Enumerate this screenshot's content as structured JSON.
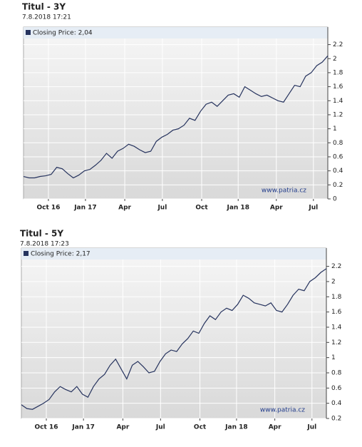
{
  "chart_data": [
    {
      "type": "line",
      "title": "Titul - 3Y",
      "subtitle": "7.8.2018 17:21",
      "annotation": "www.patria.cz",
      "series": [
        {
          "name": "Closing Price: 2,04",
          "color": "#26335e",
          "values": [
            0.32,
            0.3,
            0.3,
            0.32,
            0.33,
            0.35,
            0.45,
            0.43,
            0.36,
            0.3,
            0.34,
            0.4,
            0.42,
            0.48,
            0.55,
            0.65,
            0.58,
            0.68,
            0.72,
            0.78,
            0.75,
            0.7,
            0.66,
            0.68,
            0.82,
            0.88,
            0.92,
            0.98,
            1.0,
            1.05,
            1.15,
            1.12,
            1.25,
            1.35,
            1.38,
            1.32,
            1.4,
            1.48,
            1.5,
            1.45,
            1.6,
            1.55,
            1.5,
            1.46,
            1.48,
            1.44,
            1.4,
            1.38,
            1.5,
            1.62,
            1.6,
            1.75,
            1.8,
            1.9,
            1.95,
            2.04
          ]
        }
      ],
      "xlim": [
        0,
        55
      ],
      "xticks": [
        {
          "value": 4.5,
          "label": "Oct 16"
        },
        {
          "value": 11.2,
          "label": "Jan 17"
        },
        {
          "value": 18.3,
          "label": "Apr"
        },
        {
          "value": 25.1,
          "label": "Jul"
        },
        {
          "value": 32.2,
          "label": "Oct"
        },
        {
          "value": 38.8,
          "label": "Jan 18"
        },
        {
          "value": 45.7,
          "label": "Apr"
        },
        {
          "value": 52.4,
          "label": "Jul"
        }
      ],
      "ylim": [
        0,
        2.45
      ],
      "yticks": [
        0,
        0.2,
        0.4,
        0.6,
        0.8,
        1,
        1.2,
        1.4,
        1.6,
        1.8,
        2,
        2.2
      ],
      "grid": true
    },
    {
      "type": "line",
      "title": "Titul - 5Y",
      "subtitle": "7.8.2018 17:23",
      "annotation": "www.patria.cz",
      "series": [
        {
          "name": "Closing Price: 2,17",
          "color": "#26335e",
          "values": [
            0.38,
            0.33,
            0.32,
            0.36,
            0.4,
            0.45,
            0.55,
            0.62,
            0.58,
            0.55,
            0.62,
            0.52,
            0.48,
            0.62,
            0.72,
            0.78,
            0.9,
            0.98,
            0.85,
            0.72,
            0.9,
            0.95,
            0.88,
            0.8,
            0.82,
            0.95,
            1.05,
            1.1,
            1.08,
            1.18,
            1.25,
            1.35,
            1.32,
            1.45,
            1.55,
            1.5,
            1.6,
            1.65,
            1.62,
            1.7,
            1.82,
            1.78,
            1.72,
            1.7,
            1.68,
            1.72,
            1.62,
            1.6,
            1.7,
            1.82,
            1.9,
            1.88,
            2.0,
            2.05,
            2.12,
            2.17
          ]
        }
      ],
      "xlim": [
        0,
        55
      ],
      "xticks": [
        {
          "value": 4.5,
          "label": "Oct 16"
        },
        {
          "value": 11.2,
          "label": "Jan 17"
        },
        {
          "value": 18.3,
          "label": "Apr"
        },
        {
          "value": 25.1,
          "label": "Jul"
        },
        {
          "value": 32.2,
          "label": "Oct"
        },
        {
          "value": 38.8,
          "label": "Jan 18"
        },
        {
          "value": 45.7,
          "label": "Apr"
        },
        {
          "value": 52.4,
          "label": "Jul"
        }
      ],
      "ylim": [
        0.2,
        2.44
      ],
      "yticks": [
        0.2,
        0.4,
        0.6,
        0.8,
        1,
        1.2,
        1.4,
        1.6,
        1.8,
        2,
        2.2
      ],
      "grid": true
    }
  ]
}
